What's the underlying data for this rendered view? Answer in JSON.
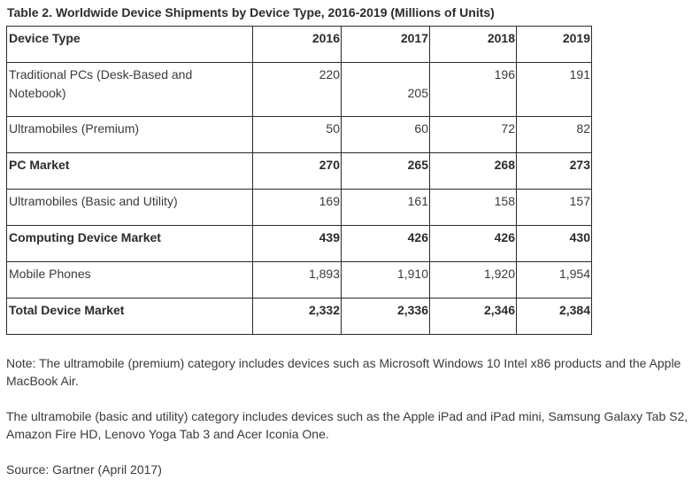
{
  "title": "Table 2. Worldwide Device Shipments by Device Type, 2016-2019 (Millions of Units)",
  "table": {
    "headers": [
      "Device Type",
      "2016",
      "2017",
      "2018",
      "2019"
    ],
    "rows": [
      {
        "label": "Traditional PCs (Desk-Based and Notebook)",
        "values": [
          "220",
          "205",
          "196",
          "191"
        ],
        "bold": false
      },
      {
        "label": "Ultramobiles (Premium)",
        "values": [
          "50",
          "60",
          "72",
          "82"
        ],
        "bold": false
      },
      {
        "label": "PC Market",
        "values": [
          "270",
          "265",
          "268",
          "273"
        ],
        "bold": true
      },
      {
        "label": "Ultramobiles (Basic and Utility)",
        "values": [
          "169",
          "161",
          "158",
          "157"
        ],
        "bold": false
      },
      {
        "label": "Computing Device Market",
        "values": [
          "439",
          "426",
          "426",
          "430"
        ],
        "bold": true
      },
      {
        "label": "Mobile Phones",
        "values": [
          "1,893",
          "1,910",
          "1,920",
          "1,954"
        ],
        "bold": false
      },
      {
        "label": "Total Device Market",
        "values": [
          "2,332",
          "2,336",
          "2,346",
          "2,384"
        ],
        "bold": true
      }
    ]
  },
  "notes": [
    "Note: The ultramobile (premium) category includes devices such as Microsoft Windows 10 Intel x86 products and the Apple MacBook Air.",
    "The ultramobile (basic and utility) category includes devices such as the Apple iPad and iPad mini, Samsung Galaxy Tab S2, Amazon Fire HD, Lenovo Yoga Tab 3 and Acer Iconia One.",
    "Source: Gartner (April 2017)"
  ]
}
